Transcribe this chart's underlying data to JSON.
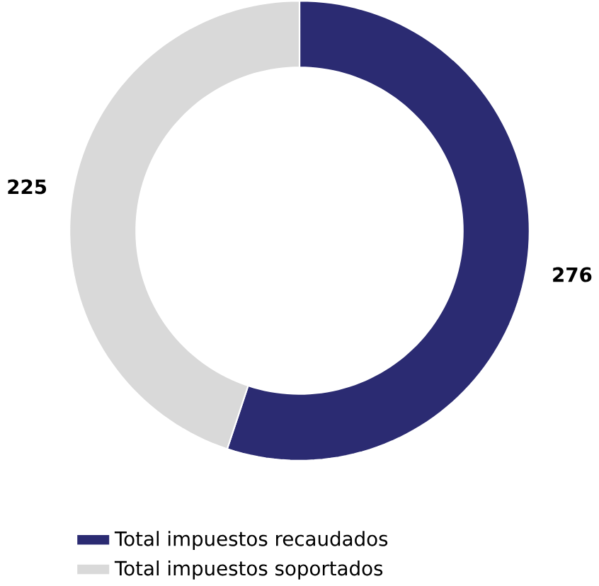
{
  "chart_data": {
    "type": "donut",
    "categories": [
      "Total impuestos recaudados",
      "Total impuestos soportados"
    ],
    "values": [
      276,
      225
    ],
    "colors": [
      "#2b2b72",
      "#d9d9d9"
    ],
    "data_labels": true,
    "legend": "bottom"
  }
}
